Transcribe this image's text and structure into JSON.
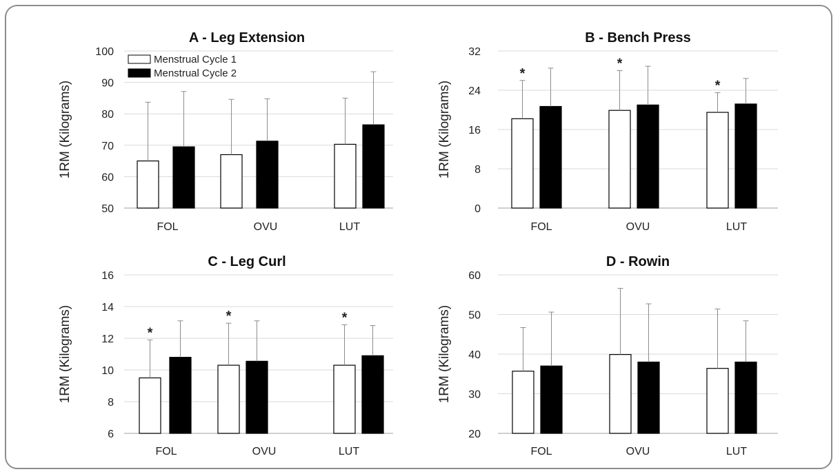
{
  "legend": [
    {
      "label": "Menstrual Cycle 1",
      "color": "#ffffff"
    },
    {
      "label": "Menstrual Cycle 2",
      "color": "#000000"
    }
  ],
  "chart_data": [
    {
      "type": "bar",
      "title": "A - Leg Extension",
      "ylabel": "1RM (Kilograms)",
      "xlabel": "",
      "categories": [
        "FOL",
        "OVU",
        "LUT"
      ],
      "ylim": [
        50,
        100
      ],
      "yticks": [
        50,
        60,
        70,
        80,
        90,
        100
      ],
      "legend_position": "top-left",
      "grid": true,
      "series": [
        {
          "name": "Menstrual Cycle 1",
          "color": "#ffffff",
          "values": [
            65,
            67,
            70.3
          ],
          "error_upper": [
            83.7,
            84.6,
            85
          ]
        },
        {
          "name": "Menstrual Cycle 2",
          "color": "#000000",
          "values": [
            69.5,
            71.3,
            76.5
          ],
          "error_upper": [
            87.1,
            84.8,
            93.4
          ]
        }
      ],
      "annotations": [
        "",
        "",
        ""
      ]
    },
    {
      "type": "bar",
      "title": "B - Bench Press",
      "ylabel": "1RM (Kilograms)",
      "xlabel": "",
      "categories": [
        "FOL",
        "OVU",
        "LUT"
      ],
      "ylim": [
        0,
        32
      ],
      "yticks": [
        0,
        8,
        16,
        24,
        32
      ],
      "grid": true,
      "series": [
        {
          "name": "Menstrual Cycle 1",
          "color": "#ffffff",
          "values": [
            18.2,
            19.9,
            19.5
          ],
          "error_upper": [
            26,
            28,
            23.5
          ]
        },
        {
          "name": "Menstrual Cycle 2",
          "color": "#000000",
          "values": [
            20.7,
            21,
            21.2
          ],
          "error_upper": [
            28.5,
            28.9,
            26.4
          ]
        }
      ],
      "annotations": [
        "*",
        "*",
        "*"
      ]
    },
    {
      "type": "bar",
      "title": "C - Leg Curl",
      "ylabel": "1RM (Kilograms)",
      "xlabel": "",
      "categories": [
        "FOL",
        "OVU",
        "LUT"
      ],
      "ylim": [
        6,
        16
      ],
      "yticks": [
        6,
        8,
        10,
        12,
        14,
        16
      ],
      "grid": true,
      "series": [
        {
          "name": "Menstrual Cycle 1",
          "color": "#ffffff",
          "values": [
            9.5,
            10.3,
            10.3
          ],
          "error_upper": [
            11.9,
            12.95,
            12.85
          ]
        },
        {
          "name": "Menstrual Cycle 2",
          "color": "#000000",
          "values": [
            10.8,
            10.55,
            10.9
          ],
          "error_upper": [
            13.1,
            13.1,
            12.8
          ]
        }
      ],
      "annotations": [
        "*",
        "*",
        "*"
      ]
    },
    {
      "type": "bar",
      "title": "D - Rowin",
      "ylabel": "1RM (Kilograms)",
      "xlabel": "",
      "categories": [
        "FOL",
        "OVU",
        "LUT"
      ],
      "ylim": [
        20,
        60
      ],
      "yticks": [
        20,
        30,
        40,
        50,
        60
      ],
      "grid": true,
      "series": [
        {
          "name": "Menstrual Cycle 1",
          "color": "#ffffff",
          "values": [
            35.7,
            39.9,
            36.4
          ],
          "error_upper": [
            46.7,
            56.6,
            51.4
          ]
        },
        {
          "name": "Menstrual Cycle 2",
          "color": "#000000",
          "values": [
            37,
            38,
            38
          ],
          "error_upper": [
            50.6,
            52.7,
            48.4
          ]
        }
      ],
      "annotations": [
        "",
        "",
        ""
      ]
    }
  ]
}
